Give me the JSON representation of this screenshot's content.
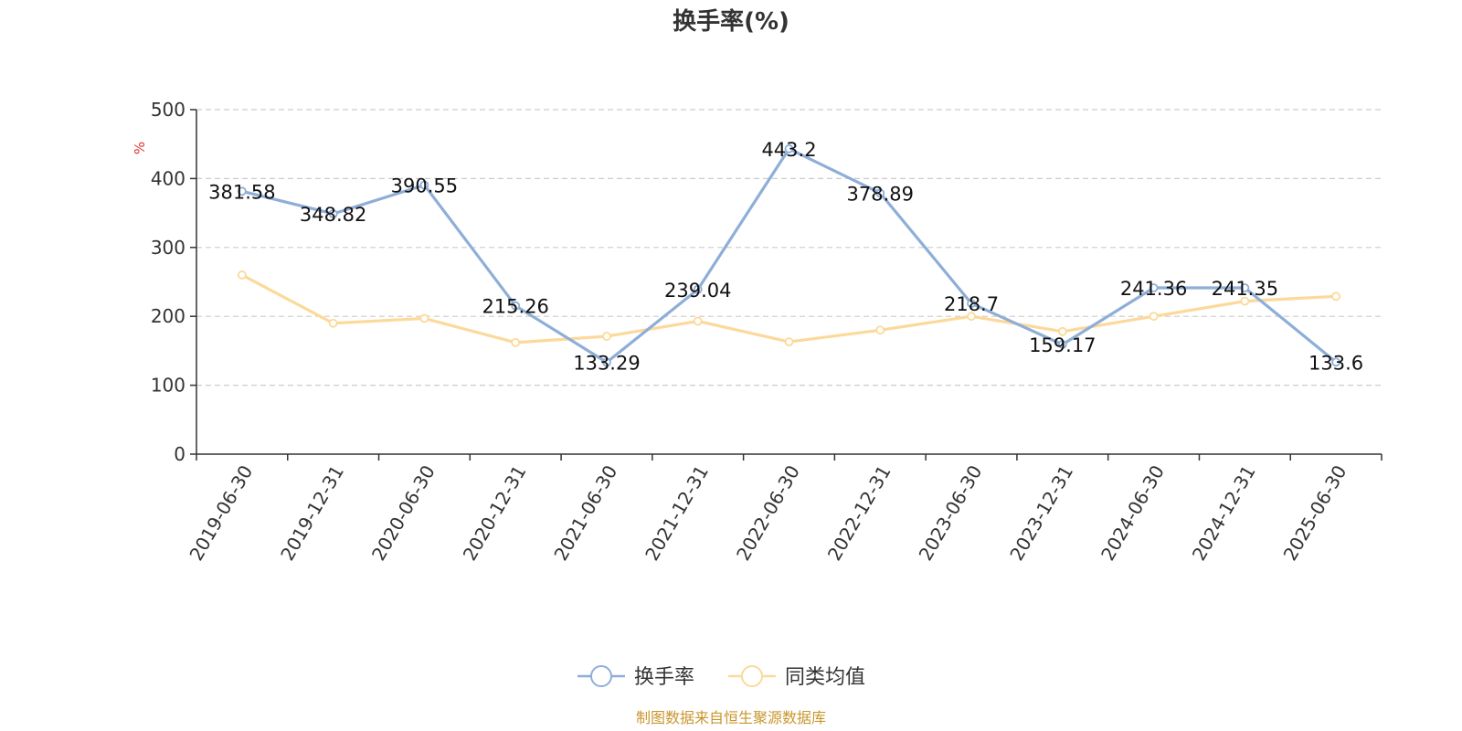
{
  "chart_data": {
    "type": "line",
    "title": "换手率(%)",
    "ylabel": "%",
    "xlabel": "",
    "ylim": [
      0,
      500
    ],
    "y_ticks": [
      0,
      100,
      200,
      300,
      400,
      500
    ],
    "grid": true,
    "legend_position": "bottom-center",
    "categories": [
      "2019-06-30",
      "2019-12-31",
      "2020-06-30",
      "2020-12-31",
      "2021-06-30",
      "2021-12-31",
      "2022-06-30",
      "2022-12-31",
      "2023-06-30",
      "2023-12-31",
      "2024-06-30",
      "2024-12-31",
      "2025-06-30"
    ],
    "series": [
      {
        "name": "换手率",
        "color": "#8eaed8",
        "show_labels": true,
        "values": [
          381.58,
          348.82,
          390.55,
          215.26,
          133.29,
          239.04,
          443.2,
          378.89,
          218.7,
          159.17,
          241.36,
          241.35,
          133.6
        ]
      },
      {
        "name": "同类均值",
        "color": "#fcd99a",
        "show_labels": false,
        "values": [
          260,
          190,
          197,
          162,
          171,
          193,
          163,
          180,
          200,
          178,
          200,
          222,
          229
        ]
      }
    ]
  },
  "source": {
    "text": "制图数据来自恒生聚源数据库",
    "color": "#c9962c"
  },
  "colors": {
    "axis": "#333333",
    "grid": "#cccccc",
    "unit": "#e03030"
  }
}
